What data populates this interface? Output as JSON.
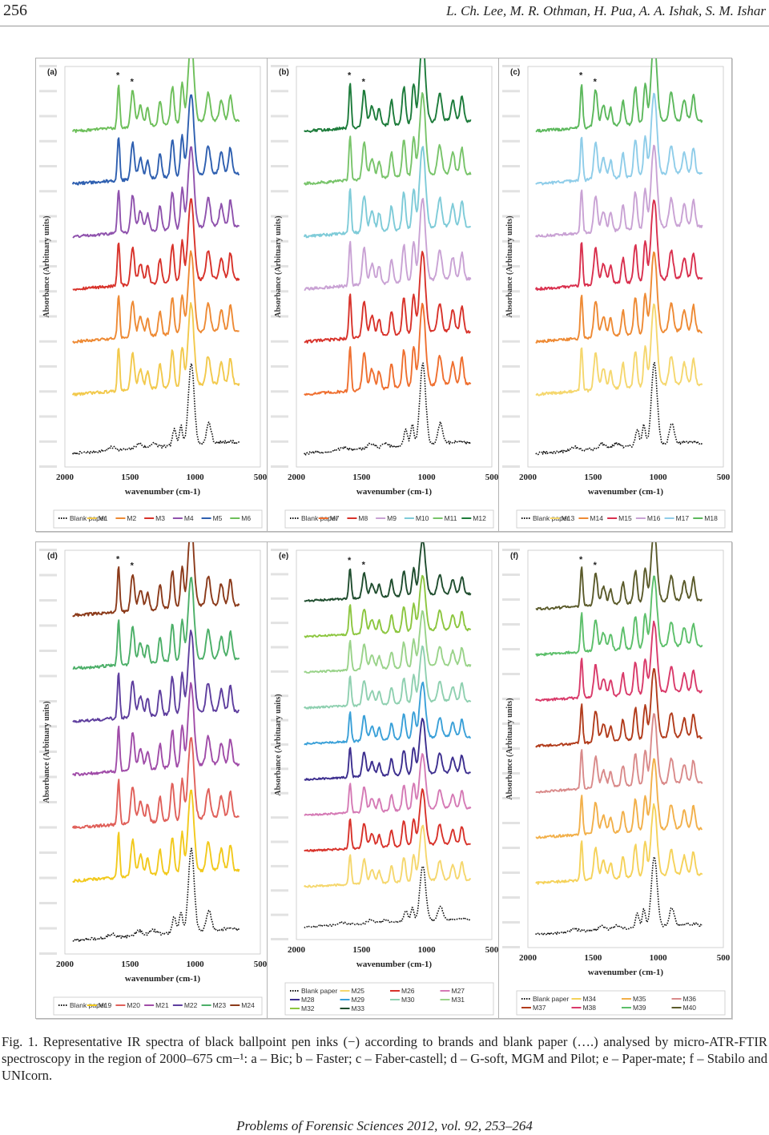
{
  "header": {
    "page_number": "256",
    "authors": "L. Ch. Lee, M. R. Othman, H. Pua, A. A. Ishak, S. M. Ishar"
  },
  "figure": {
    "caption": "Fig. 1. Representative IR spectra of black ballpoint pen inks (−) according to brands and blank paper (….) analysed by micro-ATR-FTIR spectroscopy in the region of 2000–675 cm−¹: a – Bic; b – Faster; c – Faber-castell; d – G-soft, MGM and Pilot; e – Paper-mate; f – Stabilo and UNIcorn."
  },
  "footer": {
    "journal": "Problems of Forensic Sciences 2012, vol. 92, 253–264"
  },
  "chart_data": [
    {
      "type": "line",
      "panel": "(a)",
      "xlabel": "wavenumber (cm-1)",
      "ylabel": "Absorbance (Arbituary units)",
      "xticks": [
        "2000",
        "1500",
        "1000",
        "500"
      ],
      "xlim": [
        2000,
        500
      ],
      "x_reversed": true,
      "markers": [
        "*",
        "*"
      ],
      "legend_rows": 1,
      "series": [
        {
          "name": "Blank paper",
          "color": "#111111",
          "style": "dotted"
        },
        {
          "name": "M1",
          "color": "#f2c94c",
          "style": "solid"
        },
        {
          "name": "M2",
          "color": "#ee8a34",
          "style": "solid"
        },
        {
          "name": "M3",
          "color": "#d8322a",
          "style": "solid"
        },
        {
          "name": "M4",
          "color": "#8f52ad",
          "style": "solid"
        },
        {
          "name": "M5",
          "color": "#2e5fb0",
          "style": "solid"
        },
        {
          "name": "M6",
          "color": "#6dbf5a",
          "style": "solid"
        }
      ]
    },
    {
      "type": "line",
      "panel": "(b)",
      "xlabel": "wavenumber (cm-1)",
      "ylabel": "Absorbance (Arbituary units)",
      "xticks": [
        "2000",
        "1500",
        "1000",
        "500"
      ],
      "xlim": [
        2000,
        500
      ],
      "x_reversed": true,
      "markers": [
        "*",
        "*"
      ],
      "legend_rows": 1,
      "series": [
        {
          "name": "Blank paper",
          "color": "#111111",
          "style": "dotted"
        },
        {
          "name": "M7",
          "color": "#ef6f2f",
          "style": "solid"
        },
        {
          "name": "M8",
          "color": "#d8322a",
          "style": "solid"
        },
        {
          "name": "M9",
          "color": "#c9a2d4",
          "style": "solid"
        },
        {
          "name": "M10",
          "color": "#7ecbd8",
          "style": "solid"
        },
        {
          "name": "M11",
          "color": "#78c46a",
          "style": "solid"
        },
        {
          "name": "M12",
          "color": "#1c7b3a",
          "style": "solid"
        }
      ]
    },
    {
      "type": "line",
      "panel": "(c)",
      "xlabel": "wavenumber (cm-1)",
      "ylabel": "Absorbance (Arbituary units)",
      "xticks": [
        "2000",
        "1500",
        "1000",
        "500"
      ],
      "xlim": [
        2000,
        500
      ],
      "x_reversed": true,
      "markers": [
        "*",
        "*"
      ],
      "legend_rows": 1,
      "series": [
        {
          "name": "Blank paper",
          "color": "#111111",
          "style": "dotted"
        },
        {
          "name": "M13",
          "color": "#f5d76e",
          "style": "solid"
        },
        {
          "name": "M14",
          "color": "#ee8a34",
          "style": "solid"
        },
        {
          "name": "M15",
          "color": "#d9304e",
          "style": "solid"
        },
        {
          "name": "M16",
          "color": "#c9a2d4",
          "style": "solid"
        },
        {
          "name": "M17",
          "color": "#8fcde9",
          "style": "solid"
        },
        {
          "name": "M18",
          "color": "#5cb85c",
          "style": "solid"
        }
      ]
    },
    {
      "type": "line",
      "panel": "(d)",
      "xlabel": "wavenumber (cm-1)",
      "ylabel": "Absorbance (Arbituary units)",
      "xticks": [
        "2000",
        "1500",
        "1000",
        "500"
      ],
      "xlim": [
        2000,
        500
      ],
      "x_reversed": true,
      "markers": [
        "*",
        "*"
      ],
      "legend_rows": 1,
      "series": [
        {
          "name": "Blank paper",
          "color": "#111111",
          "style": "dotted"
        },
        {
          "name": "M19",
          "color": "#f2c91c",
          "style": "solid"
        },
        {
          "name": "M20",
          "color": "#e0605a",
          "style": "solid"
        },
        {
          "name": "M21",
          "color": "#a04ca8",
          "style": "solid"
        },
        {
          "name": "M22",
          "color": "#5e3e9e",
          "style": "solid"
        },
        {
          "name": "M23",
          "color": "#4caf68",
          "style": "solid"
        },
        {
          "name": "M24",
          "color": "#8b3a1a",
          "style": "solid"
        }
      ]
    },
    {
      "type": "line",
      "panel": "(e)",
      "xlabel": "wavenumber (cm-1)",
      "ylabel": "Absorbance (Arbituary units)",
      "xticks": [
        "2000",
        "1500",
        "1000",
        "500"
      ],
      "xlim": [
        2000,
        500
      ],
      "x_reversed": true,
      "markers": [
        "*",
        "*"
      ],
      "legend_rows": 3,
      "series": [
        {
          "name": "Blank paper",
          "color": "#111111",
          "style": "dotted"
        },
        {
          "name": "M25",
          "color": "#f5d76e",
          "style": "solid"
        },
        {
          "name": "M26",
          "color": "#d8322a",
          "style": "solid"
        },
        {
          "name": "M27",
          "color": "#d57ab5",
          "style": "solid"
        },
        {
          "name": "M28",
          "color": "#3d2f8f",
          "style": "solid"
        },
        {
          "name": "M29",
          "color": "#3aa0d8",
          "style": "solid"
        },
        {
          "name": "M30",
          "color": "#8fd0b0",
          "style": "solid"
        },
        {
          "name": "M31",
          "color": "#9ad38a",
          "style": "solid"
        },
        {
          "name": "M32",
          "color": "#8cc63f",
          "style": "solid"
        },
        {
          "name": "M33",
          "color": "#1f4d2e",
          "style": "solid"
        }
      ]
    },
    {
      "type": "line",
      "panel": "(f)",
      "xlabel": "wavenumber (cm-1)",
      "ylabel": "Absorbance (Arbituary units)",
      "xticks": [
        "2000",
        "1500",
        "1000",
        "500"
      ],
      "xlim": [
        2000,
        500
      ],
      "x_reversed": true,
      "markers": [
        "*",
        "*"
      ],
      "legend_rows": 2,
      "series": [
        {
          "name": "Blank paper",
          "color": "#111111",
          "style": "dotted"
        },
        {
          "name": "M34",
          "color": "#f5d25a",
          "style": "solid"
        },
        {
          "name": "M35",
          "color": "#f2b04a",
          "style": "solid"
        },
        {
          "name": "M36",
          "color": "#d98a8a",
          "style": "solid"
        },
        {
          "name": "M37",
          "color": "#b23c1c",
          "style": "solid"
        },
        {
          "name": "M38",
          "color": "#d93a6a",
          "style": "solid"
        },
        {
          "name": "M39",
          "color": "#5cbf6a",
          "style": "solid"
        },
        {
          "name": "M40",
          "color": "#5a5a2a",
          "style": "solid"
        }
      ]
    }
  ]
}
